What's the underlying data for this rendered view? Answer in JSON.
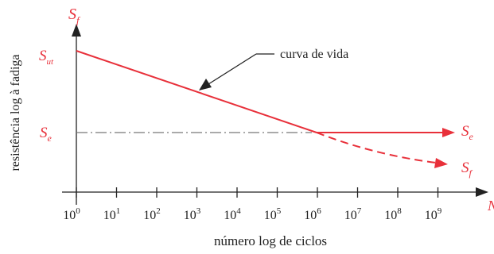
{
  "chart_data": {
    "type": "line",
    "xlabel": "número log de ciclos",
    "ylabel": "resistência log à fadiga",
    "x_axis_end_label": "N",
    "y_axis_end_label": {
      "base": "S",
      "sub": "f"
    },
    "x_scale": "log",
    "x_ticks": [
      {
        "base": "10",
        "exp": "0"
      },
      {
        "base": "10",
        "exp": "1"
      },
      {
        "base": "10",
        "exp": "2"
      },
      {
        "base": "10",
        "exp": "3"
      },
      {
        "base": "10",
        "exp": "4"
      },
      {
        "base": "10",
        "exp": "5"
      },
      {
        "base": "10",
        "exp": "6"
      },
      {
        "base": "10",
        "exp": "7"
      },
      {
        "base": "10",
        "exp": "8"
      },
      {
        "base": "10",
        "exp": "9"
      }
    ],
    "y_levels": {
      "Sut": {
        "base": "S",
        "sub": "ut"
      },
      "Se": {
        "base": "S",
        "sub": "e"
      }
    },
    "series": [
      {
        "name": "Se",
        "label": {
          "base": "S",
          "sub": "e"
        },
        "style": "solid",
        "points": [
          [
            0,
            "Sut"
          ],
          [
            6,
            "Se"
          ],
          [
            9,
            "Se"
          ]
        ]
      },
      {
        "name": "Sf",
        "label": {
          "base": "S",
          "sub": "f"
        },
        "style": "dashed",
        "points": [
          [
            6,
            "Se"
          ],
          [
            9,
            "below Se"
          ]
        ]
      }
    ],
    "reference_line": {
      "level": "Se",
      "style": "dash-dot",
      "x_range": [
        0,
        6
      ]
    },
    "annotations": [
      {
        "text": "curva de vida",
        "points_to": "sloped segment"
      }
    ],
    "colors": {
      "curve": "#e8303a",
      "axes": "#222222",
      "reference": "#777777"
    }
  }
}
